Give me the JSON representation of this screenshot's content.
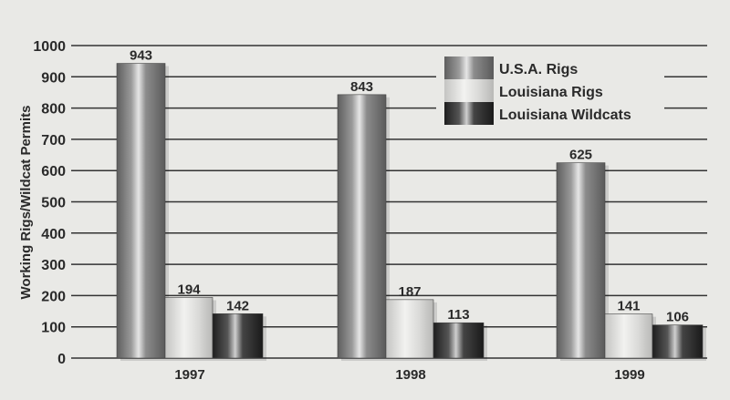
{
  "chart_data": {
    "type": "bar",
    "categories": [
      "1997",
      "1998",
      "1999"
    ],
    "series": [
      {
        "name": "U.S.A. Rigs",
        "values": [
          943,
          843,
          625
        ],
        "color": "#8a8a8a"
      },
      {
        "name": "Louisiana Rigs",
        "values": [
          194,
          187,
          141
        ],
        "color": "#d4d4d2"
      },
      {
        "name": "Louisiana Wildcats",
        "values": [
          142,
          113,
          106
        ],
        "color": "#3a3a3a"
      }
    ],
    "title": "",
    "xlabel": "",
    "ylabel": "Working Rigs/Wildcat Permits",
    "ylim": [
      0,
      1000
    ],
    "yticks": [
      0,
      100,
      200,
      300,
      400,
      500,
      600,
      700,
      800,
      900,
      1000
    ],
    "grid": true,
    "legend_position": "top-right"
  }
}
